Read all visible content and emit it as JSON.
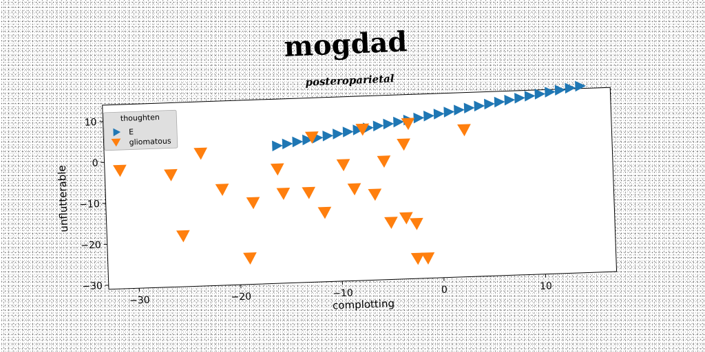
{
  "chart_data": {
    "type": "scatter",
    "title": "mogdad",
    "subtitle": "posteroparietal",
    "xlabel": "complotting",
    "ylabel": "unflutterable",
    "xlim": [
      -33,
      17
    ],
    "ylim": [
      -31,
      14
    ],
    "x_ticks": [
      -30,
      -20,
      -10,
      0,
      10
    ],
    "y_ticks": [
      -30,
      -20,
      -10,
      0,
      10
    ],
    "grid": false,
    "legend": {
      "position": "top-left",
      "title": "thoughten"
    },
    "series": [
      {
        "name": "E",
        "marker": "triangle-right",
        "color": "#1f77b4",
        "x": [
          -16.0,
          -15.0,
          -14.0,
          -13.0,
          -12.0,
          -11.0,
          -10.0,
          -9.0,
          -8.0,
          -7.0,
          -6.0,
          -5.0,
          -4.0,
          -3.0,
          -2.0,
          -1.0,
          0.0,
          1.0,
          2.0,
          3.0,
          4.0,
          5.0,
          6.0,
          7.0,
          8.0,
          9.0,
          10.0,
          11.0,
          12.0,
          13.0,
          14.0
        ],
        "y": [
          2.6,
          3.0,
          3.4,
          3.8,
          4.2,
          4.6,
          5.0,
          5.4,
          5.8,
          6.2,
          6.6,
          7.0,
          7.4,
          7.8,
          8.2,
          8.6,
          9.0,
          9.4,
          9.8,
          10.2,
          10.6,
          11.0,
          11.4,
          11.8,
          12.2,
          12.6,
          13.0,
          13.4,
          13.8,
          14.2,
          14.6
        ]
      },
      {
        "name": "gliomatous",
        "marker": "triangle-down",
        "color": "#ff7f0e",
        "x": [
          -31.5,
          -26.5,
          -25.5,
          -23.5,
          -21.5,
          -19.0,
          -18.5,
          -16.0,
          -15.5,
          -13.0,
          -12.5,
          -11.5,
          -9.5,
          -8.5,
          -7.5,
          -6.5,
          -5.5,
          -5.0,
          -3.5,
          -3.5,
          -3.0,
          -2.5,
          -2.5,
          -1.5,
          2.5
        ],
        "y": [
          -2.0,
          -3.5,
          -18.5,
          1.5,
          -7.5,
          -24.5,
          -11.0,
          -3.0,
          -9.0,
          -9.0,
          4.5,
          -14.0,
          -2.5,
          -8.5,
          6.0,
          -10.0,
          -2.0,
          -17.0,
          2.0,
          -16.0,
          7.0,
          -17.5,
          -26.0,
          -26.0,
          5.0
        ]
      }
    ]
  }
}
